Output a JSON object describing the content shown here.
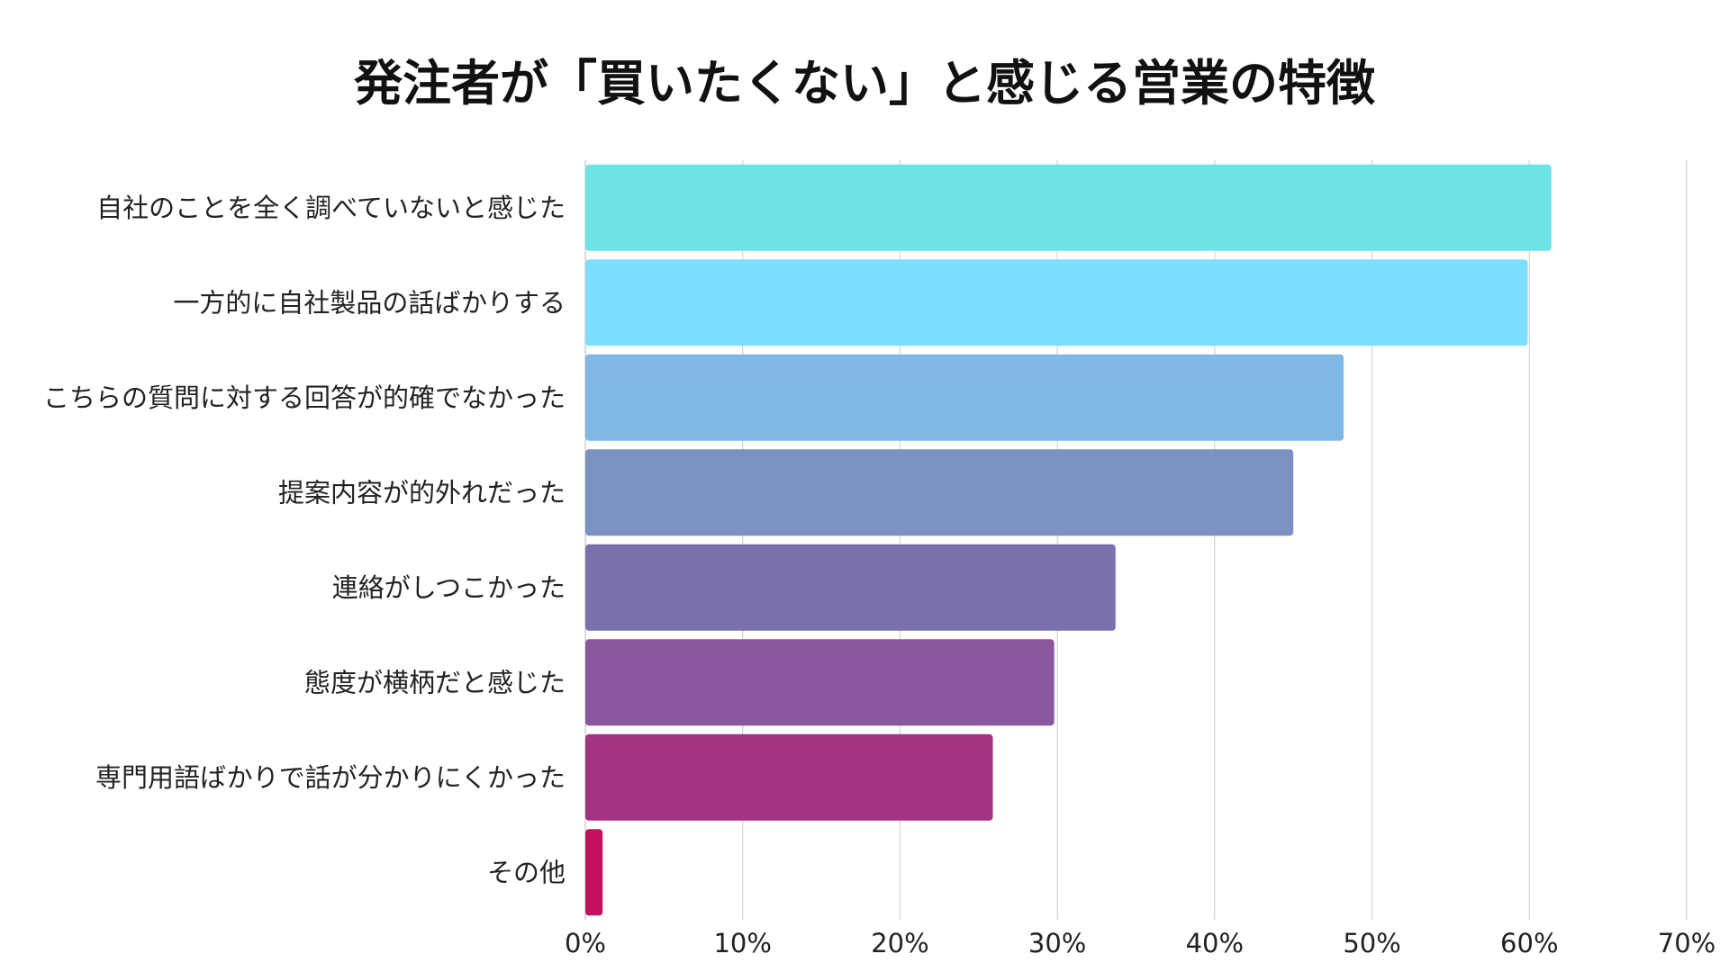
{
  "chart_data": {
    "type": "bar",
    "orientation": "horizontal",
    "title": "発注者が「買いたくない」と感じる営業の特徴",
    "categories": [
      "自社のことを全く調べていないと感じた",
      "一方的に自社製品の話ばかりする",
      "こちらの質問に対する回答が的確でなかった",
      "提案内容が的外れだった",
      "連絡がしつこかった",
      "態度が横柄だと感じた",
      "専門用語ばかりで話が分かりにくかった",
      "その他"
    ],
    "values": [
      61.4,
      59.9,
      48.2,
      45.0,
      33.7,
      29.8,
      25.9,
      1.1
    ],
    "colors": [
      "#6de3e6",
      "#7ddfff",
      "#80b8e5",
      "#7b91c2",
      "#7a71ac",
      "#8a56a0",
      "#a23282",
      "#c2125f"
    ],
    "xlim": [
      0,
      70
    ],
    "xticks": [
      0,
      10,
      20,
      30,
      40,
      50,
      60,
      70
    ],
    "xtick_labels": [
      "0%",
      "10%",
      "20%",
      "30%",
      "40%",
      "50%",
      "60%",
      "70%"
    ],
    "xlabel": "",
    "ylabel": "",
    "grid": "vertical"
  }
}
